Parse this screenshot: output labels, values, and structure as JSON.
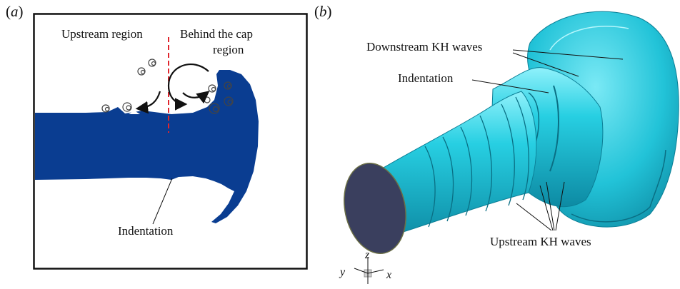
{
  "panel_a": {
    "letter_open": "(",
    "letter": "a",
    "letter_close": ")",
    "label_upstream": "Upstream region",
    "label_behind_line1": "Behind the cap",
    "label_behind_line2": "region",
    "label_indentation": "Indentation",
    "colors": {
      "jet": "#0a3d91",
      "divider": "#e0262e",
      "frame": "#111111"
    }
  },
  "panel_b": {
    "letter_open": "(",
    "letter": "b",
    "letter_close": ")",
    "label_downstream": "Downstream KH waves",
    "label_indentation": "Indentation",
    "label_upstream": "Upstream KH waves",
    "axis_z": "z",
    "axis_y": "y",
    "axis_x": "x",
    "colors": {
      "surface": "#1fc4d8",
      "surface_dark": "#0f8fa8",
      "inlet": "#3a3f5e"
    }
  }
}
